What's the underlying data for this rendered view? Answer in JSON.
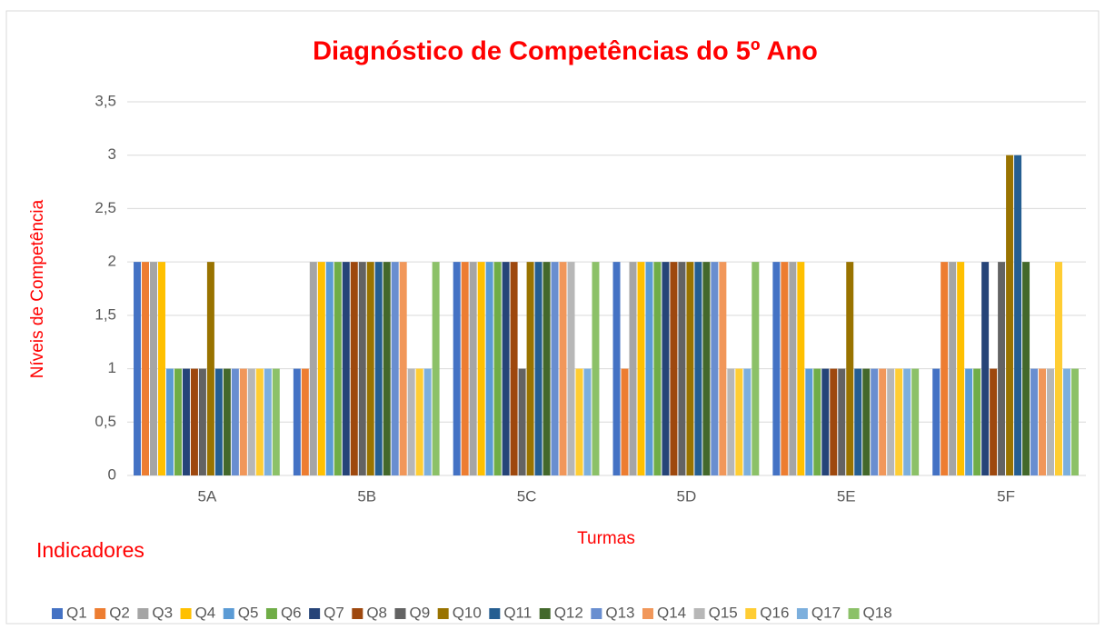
{
  "chart_data": {
    "type": "bar",
    "title": "Diagnóstico de Competências do 5º Ano",
    "y_label": "Níveis de Competência",
    "x_label": "Turmas",
    "annotation": "Indicadores",
    "categories": [
      "5A",
      "5B",
      "5C",
      "5D",
      "5E",
      "5F"
    ],
    "ylim": [
      0,
      3.5
    ],
    "yticks": [
      0,
      {
        "value": 0.5,
        "label": "0,5"
      },
      1,
      {
        "value": 1.5,
        "label": "1,5"
      },
      2,
      {
        "value": 2.5,
        "label": "2,5"
      },
      3,
      {
        "value": 3.5,
        "label": "3,5"
      }
    ],
    "grid": true,
    "legend": "bottom",
    "series": [
      {
        "name": "Q1",
        "color": "#4472c4",
        "values": [
          2,
          1,
          2,
          2,
          2,
          1
        ]
      },
      {
        "name": "Q2",
        "color": "#ed7d31",
        "values": [
          2,
          1,
          2,
          1,
          2,
          2
        ]
      },
      {
        "name": "Q3",
        "color": "#a5a5a5",
        "values": [
          2,
          2,
          2,
          2,
          2,
          2
        ]
      },
      {
        "name": "Q4",
        "color": "#ffc000",
        "values": [
          2,
          2,
          2,
          2,
          2,
          2
        ]
      },
      {
        "name": "Q5",
        "color": "#5b9bd5",
        "values": [
          1,
          2,
          2,
          2,
          1,
          1
        ]
      },
      {
        "name": "Q6",
        "color": "#70ad47",
        "values": [
          1,
          2,
          2,
          2,
          1,
          1
        ]
      },
      {
        "name": "Q7",
        "color": "#264478",
        "values": [
          1,
          2,
          2,
          2,
          1,
          2
        ]
      },
      {
        "name": "Q8",
        "color": "#9e480e",
        "values": [
          1,
          2,
          2,
          2,
          1,
          1
        ]
      },
      {
        "name": "Q9",
        "color": "#636363",
        "values": [
          1,
          2,
          1,
          2,
          1,
          2
        ]
      },
      {
        "name": "Q10",
        "color": "#997300",
        "values": [
          2,
          2,
          2,
          2,
          2,
          3
        ]
      },
      {
        "name": "Q11",
        "color": "#255e91",
        "values": [
          1,
          2,
          2,
          2,
          1,
          3
        ]
      },
      {
        "name": "Q12",
        "color": "#43682b",
        "values": [
          1,
          2,
          2,
          2,
          1,
          2
        ]
      },
      {
        "name": "Q13",
        "color": "#698ed0",
        "values": [
          1,
          2,
          2,
          2,
          1,
          1
        ]
      },
      {
        "name": "Q14",
        "color": "#f1975a",
        "values": [
          1,
          2,
          2,
          2,
          1,
          1
        ]
      },
      {
        "name": "Q15",
        "color": "#b7b7b7",
        "values": [
          1,
          1,
          2,
          1,
          1,
          1
        ]
      },
      {
        "name": "Q16",
        "color": "#ffcd33",
        "values": [
          1,
          1,
          1,
          1,
          1,
          2
        ]
      },
      {
        "name": "Q17",
        "color": "#7cafdd",
        "values": [
          1,
          1,
          1,
          1,
          1,
          1
        ]
      },
      {
        "name": "Q18",
        "color": "#8cc168",
        "values": [
          1,
          2,
          2,
          2,
          1,
          1
        ]
      }
    ]
  }
}
